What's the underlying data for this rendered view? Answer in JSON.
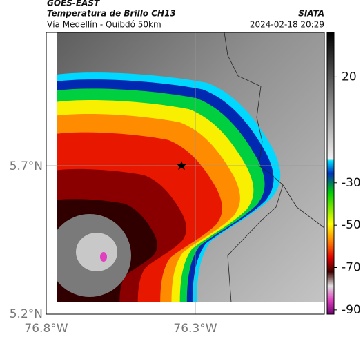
{
  "header": {
    "satellite": "GOES-EAST",
    "product": "Temperatura de Brillo CH13",
    "region": "Vía Medellín - Quibdó 50km",
    "source": "SIATA",
    "datetime": "2024-02-18 20:29"
  },
  "map": {
    "lat_labels": [
      "5.7°N",
      "5.2°N"
    ],
    "lon_labels": [
      "76.8°W",
      "76.3°W"
    ]
  },
  "colorbar": {
    "lim": [
      -92,
      41
    ],
    "ticks": [
      20,
      -30,
      -50,
      -70,
      -90
    ]
  }
}
